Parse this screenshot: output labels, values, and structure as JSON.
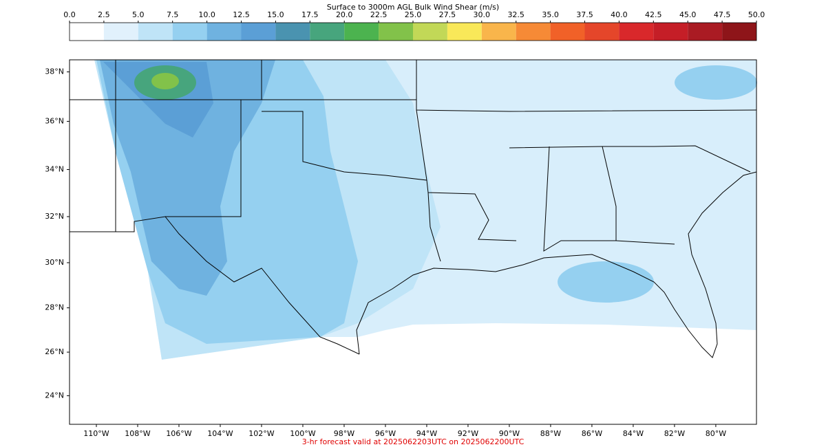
{
  "colorbar": {
    "title": "Surface to 3000m AGL Bulk Wind Shear (m/s)",
    "ticks": [
      {
        "value": 0,
        "label": "0.0"
      },
      {
        "value": 2.5,
        "label": "2.5"
      },
      {
        "value": 5,
        "label": "5.0"
      },
      {
        "value": 7.5,
        "label": "7.5"
      },
      {
        "value": 10,
        "label": "10.0"
      },
      {
        "value": 12.5,
        "label": "12.5"
      },
      {
        "value": 15,
        "label": "15.0"
      },
      {
        "value": 17.5,
        "label": "17.5"
      },
      {
        "value": 20,
        "label": "20.0"
      },
      {
        "value": 22.5,
        "label": "22.5"
      },
      {
        "value": 25,
        "label": "25.0"
      },
      {
        "value": 27.5,
        "label": "27.5"
      },
      {
        "value": 30,
        "label": "30.0"
      },
      {
        "value": 32.5,
        "label": "32.5"
      },
      {
        "value": 35,
        "label": "35.0"
      },
      {
        "value": 37.5,
        "label": "37.5"
      },
      {
        "value": 40,
        "label": "40.0"
      },
      {
        "value": 42.5,
        "label": "42.5"
      },
      {
        "value": 45,
        "label": "45.0"
      },
      {
        "value": 47.5,
        "label": "47.5"
      },
      {
        "value": 50,
        "label": "50.0"
      }
    ],
    "colors": [
      "#ffffff",
      "#e1f1fc",
      "#bfe4f7",
      "#95d0f0",
      "#6fb2e0",
      "#5b9fd6",
      "#4a93b0",
      "#47a57d",
      "#4cb34f",
      "#82c24a",
      "#c2d857",
      "#f9e859",
      "#f9b54b",
      "#f68a36",
      "#f16128",
      "#e5462a",
      "#d9282b",
      "#c51e27",
      "#aa1b23",
      "#8e1519"
    ]
  },
  "map": {
    "xlim": [
      -111.3,
      -78.03
    ],
    "ylim": [
      22.67,
      38.48
    ],
    "lon_ticks": [
      {
        "value": -110,
        "label": "110°W"
      },
      {
        "value": -108,
        "label": "108°W"
      },
      {
        "value": -106,
        "label": "106°W"
      },
      {
        "value": -104,
        "label": "104°W"
      },
      {
        "value": -102,
        "label": "102°W"
      },
      {
        "value": -100,
        "label": "100°W"
      },
      {
        "value": -98,
        "label": "98°W"
      },
      {
        "value": -96,
        "label": "96°W"
      },
      {
        "value": -94,
        "label": "94°W"
      },
      {
        "value": -92,
        "label": "92°W"
      },
      {
        "value": -90,
        "label": "90°W"
      },
      {
        "value": -88,
        "label": "88°W"
      },
      {
        "value": -86,
        "label": "86°W"
      },
      {
        "value": -84,
        "label": "84°W"
      },
      {
        "value": -82,
        "label": "82°W"
      },
      {
        "value": -80,
        "label": "80°W"
      }
    ],
    "lat_ticks": [
      {
        "value": 38,
        "label": "38°N"
      },
      {
        "value": 36,
        "label": "36°N"
      },
      {
        "value": 34,
        "label": "34°N"
      },
      {
        "value": 32,
        "label": "32°N"
      },
      {
        "value": 30,
        "label": "30°N"
      },
      {
        "value": 28,
        "label": "28°N"
      },
      {
        "value": 26,
        "label": "26°N"
      },
      {
        "value": 24,
        "label": "24°N"
      }
    ]
  },
  "footer": "3-hr forecast valid at 2025062203UTC on 2025062200UTC"
}
